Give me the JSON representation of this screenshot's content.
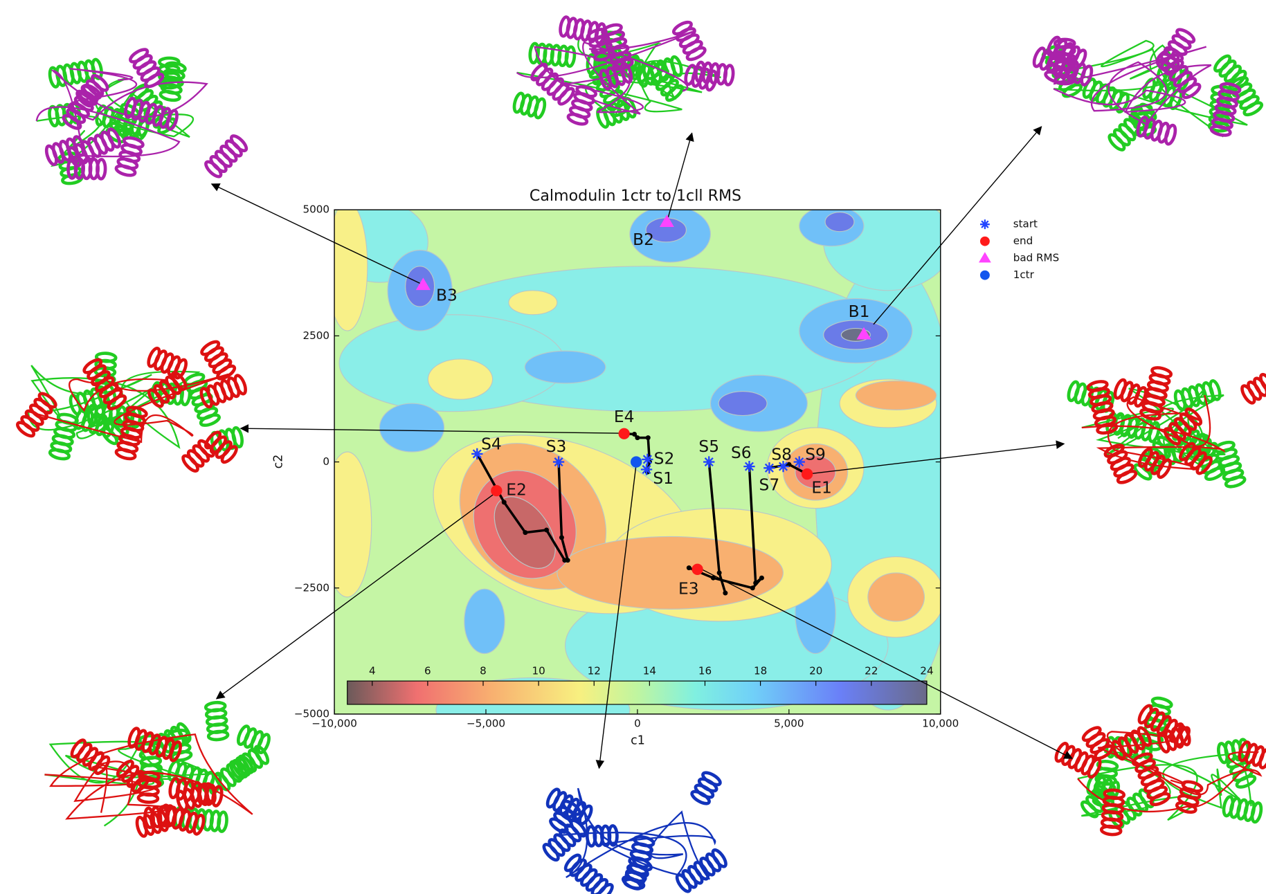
{
  "chart_data": {
    "type": "scatter",
    "title": "Calmodulin 1ctr to 1cll RMS",
    "xlabel": "c1",
    "ylabel": "c2",
    "xlim": [
      -10000,
      10000
    ],
    "ylim": [
      -5000,
      5000
    ],
    "xticks": [
      {
        "value": -10000,
        "label": "−10,000"
      },
      {
        "value": -5000,
        "label": "−5,000"
      },
      0,
      {
        "value": 5000,
        "label": "5,000"
      },
      {
        "value": 10000,
        "label": "10,000"
      }
    ],
    "yticks": [
      5000,
      2500,
      0,
      {
        "value": -2500,
        "label": "−2500"
      },
      {
        "value": -5000,
        "label": "−5000"
      }
    ],
    "legend": "outside-right",
    "series": [
      {
        "name": "start",
        "color": "#2244ff",
        "marker": "asterisk",
        "labels": [
          "S1",
          "S2",
          "S3",
          "S4",
          "S5",
          "S6",
          "S7",
          "S8",
          "S9"
        ],
        "x": [
          300,
          330,
          -2600,
          -5290,
          2360,
          3690,
          4350,
          4810,
          5340
        ],
        "y": [
          -150,
          50,
          0,
          160,
          0,
          -90,
          -120,
          -90,
          0
        ]
      },
      {
        "name": "end",
        "color": "#ff1a1a",
        "marker": "circle",
        "labels": [
          "E1",
          "E2",
          "E3",
          "E4"
        ],
        "x": [
          5600,
          -4650,
          1980,
          -440
        ],
        "y": [
          -240,
          -570,
          -2130,
          560
        ]
      },
      {
        "name": "bad RMS",
        "color": "#ff44ff",
        "marker": "triangle",
        "labels": [
          "B1",
          "B2",
          "B3"
        ],
        "x": [
          7470,
          970,
          -7070
        ],
        "y": [
          2530,
          4760,
          3510
        ]
      },
      {
        "name": "1ctr",
        "color": "#1155ee",
        "marker": "circle",
        "x": [
          -40
        ],
        "y": [
          0
        ]
      }
    ],
    "lines": [
      {
        "color": "#000000",
        "x": [
          -5290,
          -4400,
          -3700,
          -3000,
          -2400
        ],
        "y": [
          160,
          -800,
          -1400,
          -1350,
          -1950
        ]
      },
      {
        "color": "#000000",
        "x": [
          -2600,
          -2500,
          -2300
        ],
        "y": [
          0,
          -1500,
          -1950
        ]
      },
      {
        "color": "#000000",
        "x": [
          -440,
          -100,
          0,
          350,
          400,
          330
        ],
        "y": [
          560,
          550,
          480,
          480,
          0,
          -200
        ]
      },
      {
        "color": "#000000",
        "x": [
          2360,
          2700,
          2900
        ],
        "y": [
          0,
          -2200,
          -2600
        ]
      },
      {
        "color": "#000000",
        "x": [
          3690,
          3900,
          4100,
          3800,
          2500,
          1700
        ],
        "y": [
          -90,
          -2400,
          -2300,
          -2500,
          -2300,
          -2100
        ]
      },
      {
        "color": "#000000",
        "x": [
          4350,
          5000,
          5600
        ],
        "y": [
          -120,
          -50,
          -240
        ]
      }
    ],
    "colorbar": {
      "lim": [
        3.1,
        24
      ],
      "ticks": [
        4,
        6,
        8,
        10,
        12,
        14,
        16,
        18,
        20,
        22,
        24
      ]
    }
  }
}
